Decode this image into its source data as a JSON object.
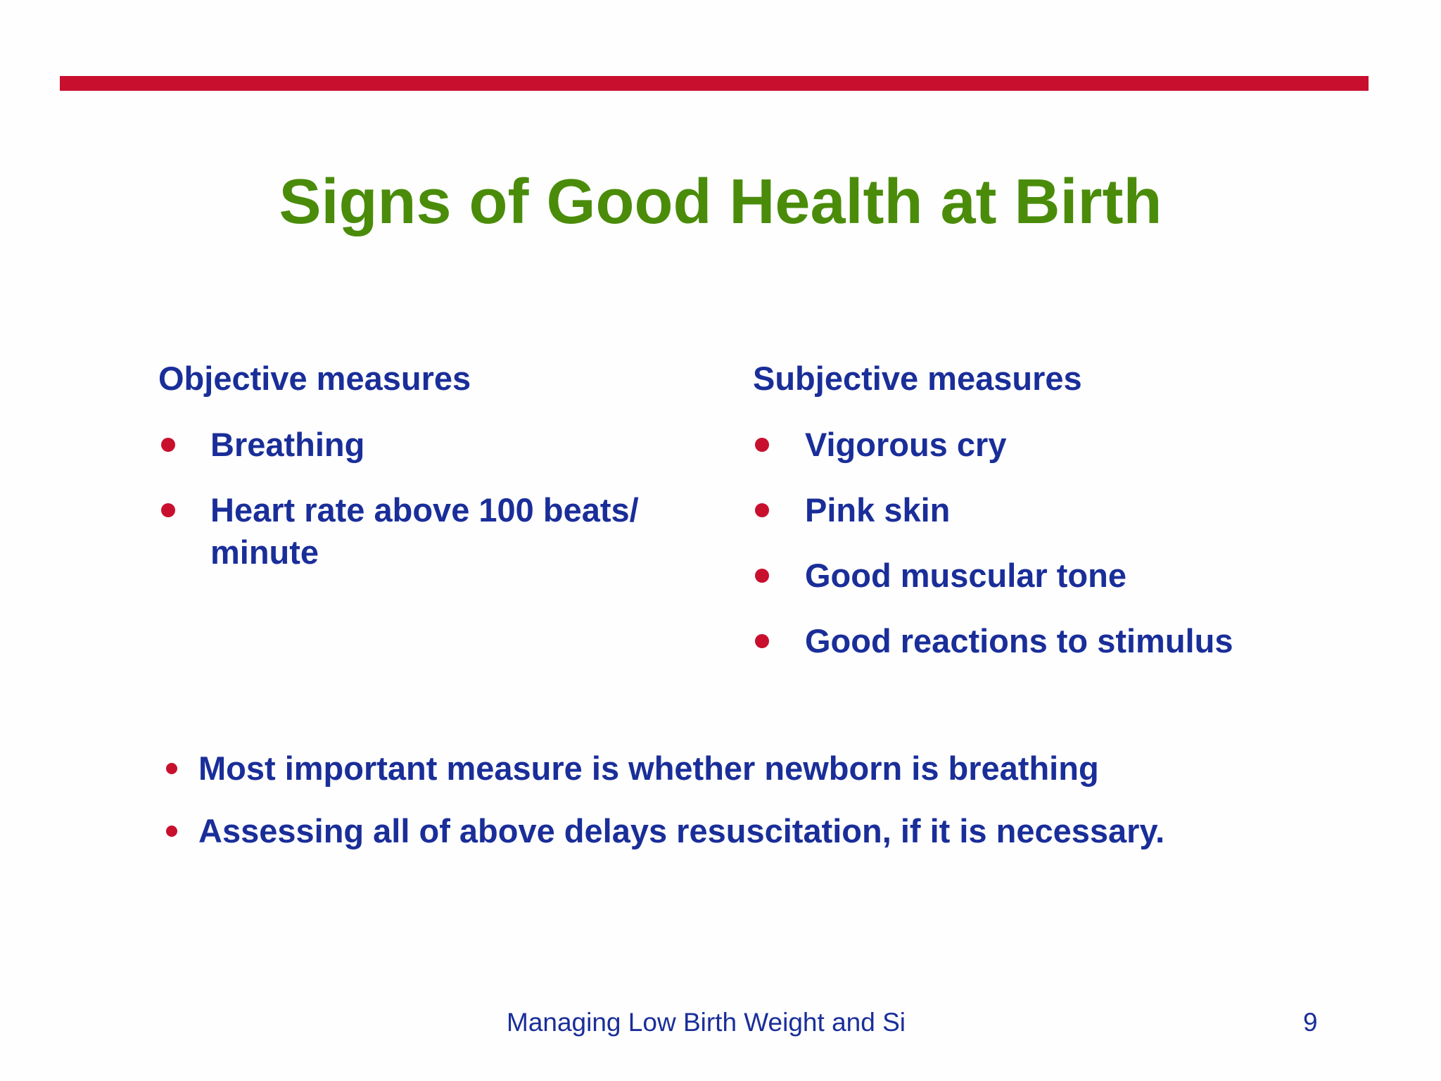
{
  "header": {
    "title": "Signs of Good Health at Birth"
  },
  "columns": [
    {
      "heading": "Objective measures",
      "items": [
        "Breathing",
        "Heart rate above 100 beats/ minute"
      ]
    },
    {
      "heading": "Subjective measures",
      "items": [
        "Vigorous cry",
        "Pink skin",
        "Good muscular tone",
        "Good reactions to stimulus"
      ]
    }
  ],
  "bullets": [
    "Most important measure is whether newborn is breathing",
    "Assessing all of above delays resuscitation, if it is necessary."
  ],
  "footer": {
    "text": "Managing Low Birth Weight and Si",
    "page": "9"
  }
}
